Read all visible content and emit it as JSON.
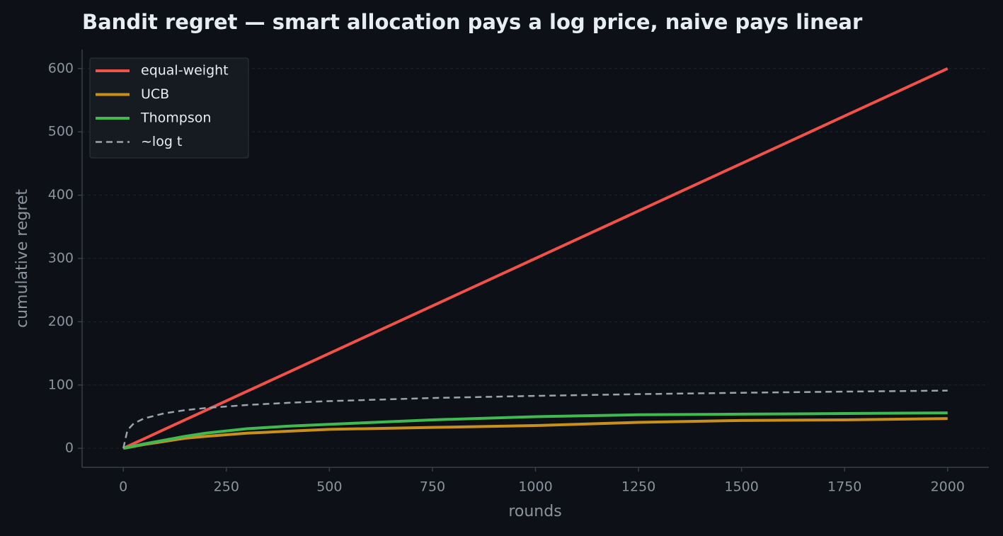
{
  "chart_data": {
    "type": "line",
    "title": "Bandit regret — smart allocation pays a log price, naive pays linear",
    "xlabel": "rounds",
    "ylabel": "cumulative regret",
    "x": [
      0,
      10,
      25,
      50,
      100,
      150,
      200,
      300,
      400,
      500,
      750,
      1000,
      1250,
      1500,
      1750,
      2000
    ],
    "series": [
      {
        "name": "equal-weight",
        "color": "#f0524a",
        "linestyle": "solid",
        "values": [
          0,
          3,
          7.5,
          15,
          30,
          45,
          60,
          90,
          120,
          150,
          225,
          300,
          375,
          450,
          525,
          600
        ]
      },
      {
        "name": "UCB",
        "color": "#c8901a",
        "linestyle": "solid",
        "values": [
          0,
          1,
          3,
          6,
          11,
          16,
          19,
          24,
          27,
          30,
          33,
          36,
          41,
          44,
          45,
          47
        ]
      },
      {
        "name": "Thompson",
        "color": "#3fb950",
        "linestyle": "solid",
        "values": [
          0,
          1.5,
          3.5,
          7,
          13,
          19,
          24,
          31,
          35,
          38,
          45,
          50,
          53,
          54,
          55,
          56
        ]
      },
      {
        "name": "~log t",
        "color": "#9aa4ae",
        "linestyle": "dashed",
        "values": [
          0,
          28.8,
          39.1,
          47.2,
          55.4,
          60.3,
          63.7,
          68.5,
          71.9,
          74.6,
          79.5,
          82.9,
          85.6,
          87.8,
          89.6,
          91.2
        ]
      }
    ],
    "xlim": [
      -100,
      2100
    ],
    "ylim": [
      -30,
      630
    ],
    "xticks": [
      0,
      250,
      500,
      750,
      1000,
      1250,
      1500,
      1750,
      2000
    ],
    "yticks": [
      0,
      100,
      200,
      300,
      400,
      500,
      600
    ],
    "grid": true,
    "legend": "upper-left"
  }
}
